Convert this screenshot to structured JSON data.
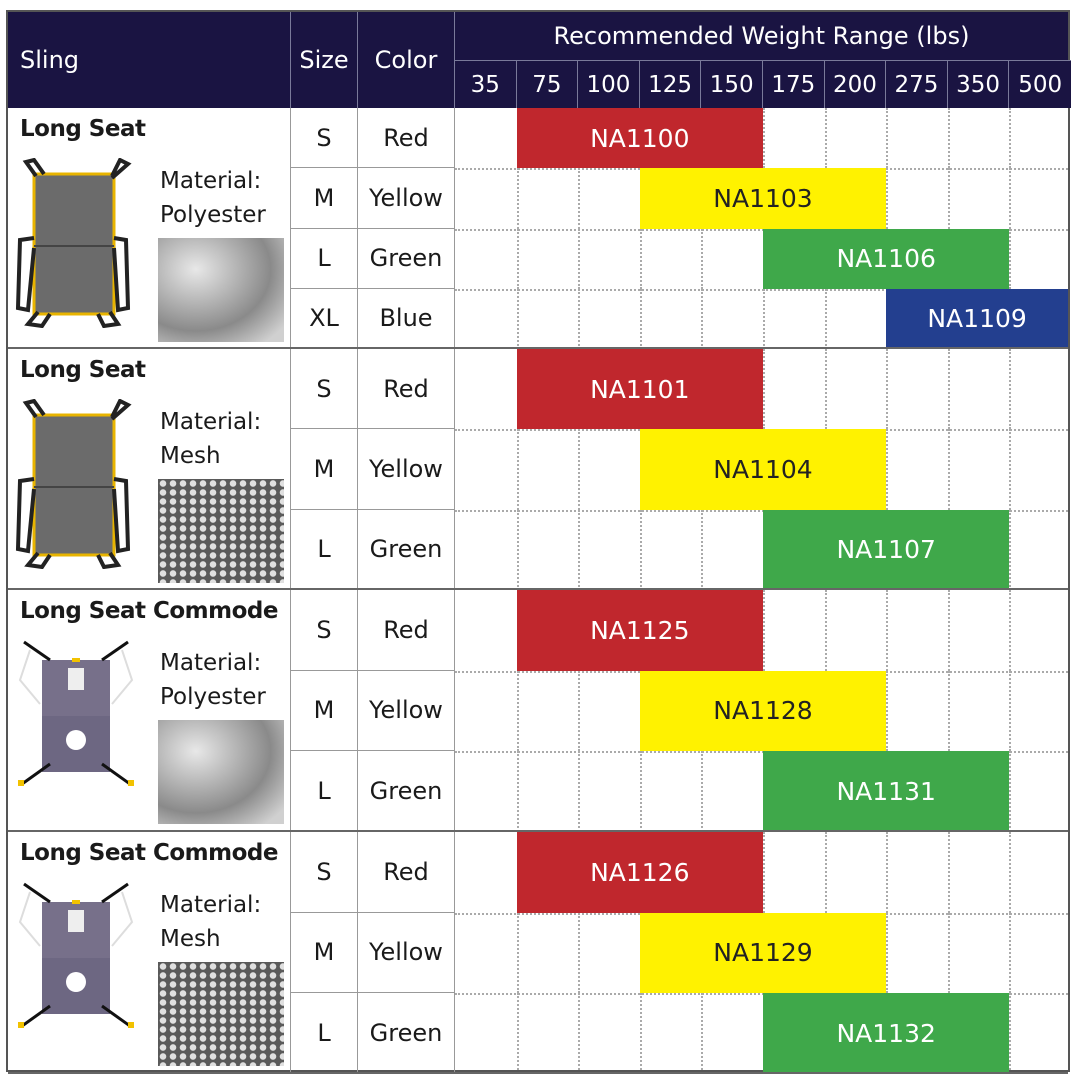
{
  "header": {
    "sling": "Sling",
    "size": "Size",
    "color": "Color",
    "weight_range": "Recommended Weight Range (lbs)",
    "weights": [
      "35",
      "75",
      "100",
      "125",
      "150",
      "175",
      "200",
      "275",
      "350",
      "500"
    ]
  },
  "colors": {
    "header_bg": "#1a1442",
    "Red": "#c0272d",
    "Yellow": "#fff200",
    "Green": "#3fa84a",
    "Blue": "#233f8f"
  },
  "groups": [
    {
      "name": "Long Seat",
      "material_label": "Material:",
      "material": "Polyester",
      "image": "long-seat-sling",
      "rows": [
        {
          "size": "S",
          "color": "Red",
          "code": "NA1100",
          "from": "75",
          "to": "150"
        },
        {
          "size": "M",
          "color": "Yellow",
          "code": "NA1103",
          "from": "125",
          "to": "200"
        },
        {
          "size": "L",
          "color": "Green",
          "code": "NA1106",
          "from": "175",
          "to": "350"
        },
        {
          "size": "XL",
          "color": "Blue",
          "code": "NA1109",
          "from": "275",
          "to": "500"
        }
      ]
    },
    {
      "name": "Long Seat",
      "material_label": "Material:",
      "material": "Mesh",
      "image": "long-seat-sling",
      "rows": [
        {
          "size": "S",
          "color": "Red",
          "code": "NA1101",
          "from": "75",
          "to": "150"
        },
        {
          "size": "M",
          "color": "Yellow",
          "code": "NA1104",
          "from": "125",
          "to": "200"
        },
        {
          "size": "L",
          "color": "Green",
          "code": "NA1107",
          "from": "175",
          "to": "350"
        }
      ]
    },
    {
      "name": "Long Seat Commode",
      "material_label": "Material:",
      "material": "Polyester",
      "image": "commode-sling",
      "rows": [
        {
          "size": "S",
          "color": "Red",
          "code": "NA1125",
          "from": "75",
          "to": "150"
        },
        {
          "size": "M",
          "color": "Yellow",
          "code": "NA1128",
          "from": "125",
          "to": "200"
        },
        {
          "size": "L",
          "color": "Green",
          "code": "NA1131",
          "from": "175",
          "to": "350"
        }
      ]
    },
    {
      "name": "Long Seat Commode",
      "material_label": "Material:",
      "material": "Mesh",
      "image": "commode-sling",
      "rows": [
        {
          "size": "S",
          "color": "Red",
          "code": "NA1126",
          "from": "75",
          "to": "150"
        },
        {
          "size": "M",
          "color": "Yellow",
          "code": "NA1129",
          "from": "125",
          "to": "200"
        },
        {
          "size": "L",
          "color": "Green",
          "code": "NA1132",
          "from": "175",
          "to": "350"
        }
      ]
    }
  ]
}
